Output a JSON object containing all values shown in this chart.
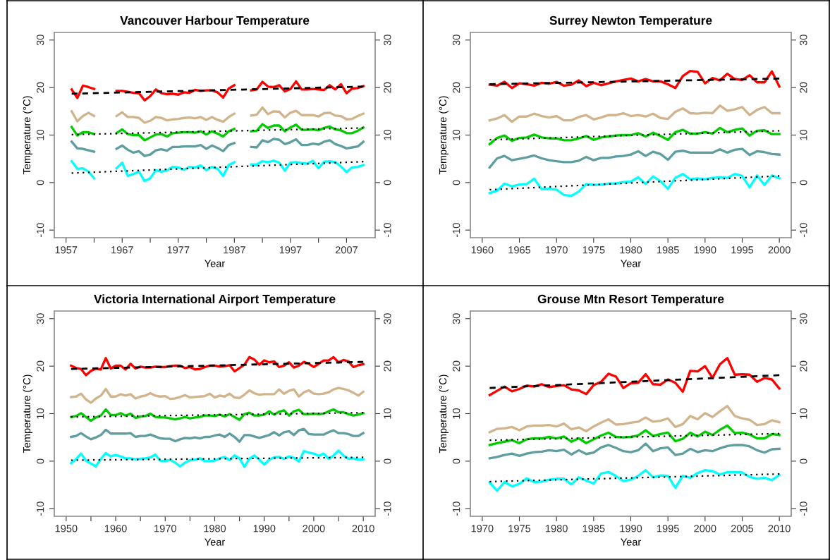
{
  "chart_data": [
    {
      "type": "line",
      "title": "Vancouver Harbour Temperature",
      "xlabel": "Year",
      "ylabel": "Temperature (°C)",
      "x": [
        1958,
        1959,
        1960,
        1961,
        1962,
        1963,
        1964,
        1965,
        1966,
        1967,
        1968,
        1969,
        1970,
        1971,
        1972,
        1973,
        1974,
        1975,
        1976,
        1977,
        1978,
        1979,
        1980,
        1981,
        1982,
        1983,
        1984,
        1985,
        1986,
        1987,
        1988,
        1989,
        1990,
        1991,
        1992,
        1993,
        1994,
        1995,
        1996,
        1997,
        1998,
        1999,
        2000,
        2001,
        2002,
        2003,
        2004,
        2005,
        2006,
        2007,
        2008,
        2009,
        2010
      ],
      "xlim": [
        1954.9,
        2012.1
      ],
      "xticks": [
        1957,
        {
          "value": 1962,
          "label": null
        },
        1967,
        {
          "value": 1972,
          "label": null
        },
        1977,
        {
          "value": 1982,
          "label": null
        },
        1987,
        {
          "value": 1992,
          "label": null
        },
        1997,
        {
          "value": 2002,
          "label": null
        },
        2007
      ],
      "ylim": [
        -11.6,
        31.6
      ],
      "yticks": [
        -10,
        0,
        10,
        20,
        30
      ],
      "y2lim": [
        -11.6,
        31.6
      ],
      "y2ticks": [
        -10,
        0,
        10,
        20,
        30
      ],
      "grid": false,
      "series": [
        {
          "color": "#ff0000",
          "values": [
            19.6,
            17.8,
            20.4,
            20.1,
            19.7,
            null,
            null,
            null,
            19.3,
            19.3,
            19.1,
            18.9,
            18.8,
            17.3,
            18.2,
            19.6,
            18.8,
            18.6,
            18.7,
            18.5,
            19.0,
            18.9,
            19.5,
            19.3,
            19.4,
            19.4,
            19.0,
            17.9,
            19.8,
            20.5,
            null,
            null,
            19.4,
            19.6,
            21.2,
            20.2,
            20.1,
            20.5,
            19.2,
            19.7,
            21.3,
            19.6,
            19.6,
            19.7,
            19.6,
            19.5,
            20.5,
            19.6,
            20.7,
            18.8,
            19.8,
            19.9,
            20.3
          ]
        },
        {
          "color": "#d2b48c",
          "values": [
            15.0,
            12.9,
            14.0,
            14.7,
            14.0,
            null,
            null,
            null,
            14.0,
            14.8,
            13.8,
            13.8,
            13.6,
            12.6,
            13.0,
            13.8,
            13.6,
            13.1,
            13.3,
            13.4,
            13.6,
            13.7,
            13.5,
            13.8,
            13.2,
            13.8,
            13.2,
            12.8,
            13.8,
            14.5,
            null,
            null,
            14.1,
            14.3,
            15.8,
            14.4,
            15.0,
            14.9,
            13.7,
            14.7,
            15.1,
            14.2,
            14.2,
            14.2,
            13.9,
            14.6,
            14.7,
            14.1,
            14.0,
            13.3,
            13.4,
            14.0,
            14.5
          ]
        },
        {
          "color": "#00cc00",
          "values": [
            11.7,
            9.9,
            10.6,
            10.6,
            10.2,
            null,
            null,
            null,
            10.4,
            11.2,
            10.2,
            10.0,
            10.0,
            8.9,
            9.5,
            10.1,
            10.2,
            9.7,
            10.4,
            10.5,
            10.6,
            10.6,
            10.5,
            10.8,
            10.1,
            10.8,
            10.3,
            9.7,
            10.8,
            11.3,
            null,
            null,
            10.8,
            10.9,
            12.3,
            11.5,
            12.0,
            12.0,
            10.8,
            11.6,
            12.2,
            11.1,
            11.1,
            11.2,
            11.0,
            11.5,
            11.8,
            11.2,
            11.0,
            10.4,
            10.4,
            10.9,
            11.6
          ]
        },
        {
          "color": "#5f9ea0",
          "values": [
            8.6,
            7.2,
            7.1,
            6.8,
            6.5,
            null,
            null,
            null,
            7.1,
            7.8,
            6.9,
            6.3,
            6.6,
            5.6,
            5.9,
            6.8,
            7.0,
            6.7,
            7.5,
            7.5,
            7.6,
            7.6,
            7.6,
            7.9,
            7.1,
            7.8,
            7.3,
            6.6,
            7.9,
            8.3,
            null,
            null,
            7.5,
            7.4,
            8.9,
            8.5,
            9.2,
            9.0,
            8.1,
            8.5,
            9.1,
            7.9,
            7.9,
            8.2,
            8.0,
            8.6,
            8.9,
            8.1,
            7.7,
            7.2,
            7.4,
            7.6,
            8.6
          ]
        },
        {
          "color": "#00ffff",
          "values": [
            4.5,
            2.9,
            3.0,
            2.3,
            0.9,
            null,
            null,
            null,
            3.0,
            4.2,
            1.4,
            1.8,
            2.3,
            0.3,
            0.9,
            2.6,
            2.3,
            2.6,
            3.3,
            3.2,
            2.7,
            3.3,
            3.2,
            3.6,
            2.6,
            3.3,
            2.9,
            1.4,
            3.7,
            4.3,
            null,
            null,
            3.8,
            3.8,
            4.5,
            4.3,
            4.6,
            4.2,
            2.5,
            4.2,
            4.3,
            4.1,
            4.0,
            4.6,
            3.0,
            4.4,
            4.5,
            4.3,
            3.4,
            2.2,
            3.2,
            3.3,
            3.7
          ]
        },
        {
          "type": "line",
          "color": "#000000",
          "line_style": "dashed",
          "x": [
            1958,
            2010
          ],
          "values": [
            18.7,
            20.2
          ]
        },
        {
          "type": "line",
          "color": "#000000",
          "line_style": "dotted",
          "x": [
            1958,
            2010
          ],
          "values": [
            10.1,
            11.5
          ]
        },
        {
          "type": "line",
          "color": "#000000",
          "line_style": "dotted",
          "x": [
            1958,
            2010
          ],
          "values": [
            2.0,
            4.4
          ]
        }
      ]
    },
    {
      "type": "line",
      "title": "Surrey Newton Temperature",
      "xlabel": "Year",
      "ylabel": "Temperature (°C)",
      "x": [
        1961,
        1962,
        1963,
        1964,
        1965,
        1966,
        1967,
        1968,
        1969,
        1970,
        1971,
        1972,
        1973,
        1974,
        1975,
        1976,
        1977,
        1978,
        1979,
        1980,
        1981,
        1982,
        1983,
        1984,
        1985,
        1986,
        1987,
        1988,
        1989,
        1990,
        1991,
        1992,
        1993,
        1994,
        1995,
        1996,
        1997,
        1998,
        1999,
        2000
      ],
      "xlim": [
        1958.4,
        2001.6
      ],
      "xticks": [
        1960,
        1965,
        1970,
        1975,
        1980,
        1985,
        1990,
        1995,
        2000
      ],
      "ylim": [
        -11.6,
        31.6
      ],
      "yticks": [
        -10,
        0,
        10,
        20,
        30
      ],
      "y2lim": [
        -11.6,
        31.6
      ],
      "y2ticks": [
        -10,
        0,
        10,
        20,
        30
      ],
      "grid": false,
      "series": [
        {
          "color": "#ff0000",
          "values": [
            20.6,
            20.4,
            21.2,
            19.9,
            20.9,
            20.7,
            20.4,
            21.0,
            20.8,
            21.2,
            20.4,
            20.6,
            21.5,
            20.3,
            21.0,
            20.5,
            20.9,
            21.3,
            21.6,
            21.9,
            21.3,
            21.8,
            21.3,
            21.3,
            20.7,
            19.9,
            22.4,
            23.5,
            23.3,
            20.9,
            22.0,
            21.5,
            22.9,
            21.8,
            21.6,
            22.6,
            21.1,
            21.1,
            23.4,
            20.2
          ]
        },
        {
          "color": "#d2b48c",
          "values": [
            13.1,
            13.5,
            14.2,
            12.8,
            13.9,
            13.9,
            14.5,
            14.0,
            13.7,
            14.0,
            13.1,
            13.1,
            13.8,
            14.2,
            13.3,
            13.7,
            14.2,
            14.2,
            14.6,
            14.0,
            14.2,
            13.9,
            14.5,
            13.6,
            13.4,
            14.9,
            15.6,
            14.6,
            14.5,
            14.7,
            14.6,
            16.2,
            15.1,
            15.4,
            15.9,
            14.2,
            15.3,
            15.9,
            14.6,
            14.6
          ]
        },
        {
          "color": "#00cc00",
          "values": [
            8.1,
            9.4,
            9.9,
            8.8,
            9.4,
            9.5,
            10.1,
            9.5,
            9.3,
            9.3,
            8.9,
            8.9,
            9.3,
            9.8,
            9.0,
            9.5,
            9.7,
            9.9,
            10.0,
            10.0,
            10.4,
            9.7,
            10.5,
            9.8,
            9.0,
            10.6,
            11.1,
            10.3,
            10.3,
            10.6,
            10.3,
            11.5,
            10.6,
            11.1,
            11.4,
            9.9,
            10.9,
            11.0,
            10.2,
            10.2
          ]
        },
        {
          "color": "#5f9ea0",
          "values": [
            3.2,
            5.1,
            5.6,
            4.7,
            5.0,
            5.3,
            5.7,
            5.1,
            4.7,
            4.5,
            4.3,
            4.3,
            4.6,
            5.4,
            4.7,
            5.2,
            5.2,
            5.5,
            5.6,
            5.9,
            6.6,
            5.6,
            6.5,
            6.0,
            4.8,
            6.5,
            6.7,
            6.3,
            6.3,
            6.3,
            6.3,
            7.0,
            6.3,
            6.9,
            7.1,
            5.8,
            6.6,
            6.4,
            6.0,
            5.9
          ]
        },
        {
          "color": "#00ffff",
          "values": [
            -2.2,
            -1.7,
            -0.2,
            -0.8,
            -0.4,
            -0.3,
            0.8,
            -1.4,
            -1.3,
            -1.5,
            -2.6,
            -2.8,
            -1.9,
            -0.3,
            -0.5,
            -0.4,
            -0.2,
            -0.2,
            0.1,
            0.2,
            1.1,
            -0.3,
            1.3,
            0.3,
            -1.3,
            1.0,
            1.8,
            0.7,
            0.9,
            0.7,
            1.0,
            1.1,
            1.0,
            1.8,
            1.4,
            -1.0,
            1.5,
            -0.5,
            1.5,
            0.9
          ]
        },
        {
          "type": "line",
          "color": "#000000",
          "line_style": "dashed",
          "x": [
            1961,
            2000
          ],
          "values": [
            20.7,
            21.9
          ]
        },
        {
          "type": "line",
          "color": "#000000",
          "line_style": "dotted",
          "x": [
            1961,
            2000
          ],
          "values": [
            9.0,
            10.9
          ]
        },
        {
          "type": "line",
          "color": "#000000",
          "line_style": "dotted",
          "x": [
            1961,
            2000
          ],
          "values": [
            -1.5,
            1.4
          ]
        }
      ]
    },
    {
      "type": "line",
      "title": "Victoria International Airport Temperature",
      "xlabel": "Year",
      "ylabel": "Temperature (°C)",
      "x": [
        1951,
        1952,
        1953,
        1954,
        1955,
        1956,
        1957,
        1958,
        1959,
        1960,
        1961,
        1962,
        1963,
        1964,
        1965,
        1966,
        1967,
        1968,
        1969,
        1970,
        1971,
        1972,
        1973,
        1974,
        1975,
        1976,
        1977,
        1978,
        1979,
        1980,
        1981,
        1982,
        1983,
        1984,
        1985,
        1986,
        1987,
        1988,
        1989,
        1990,
        1991,
        1992,
        1993,
        1994,
        1995,
        1996,
        1997,
        1998,
        1999,
        2000,
        2001,
        2002,
        2003,
        2004,
        2005,
        2006,
        2007,
        2008,
        2009,
        2010
      ],
      "xlim": [
        1947.6,
        2012.4
      ],
      "xticks": [
        1950,
        {
          "value": 1955,
          "label": null
        },
        1960,
        {
          "value": 1965,
          "label": null
        },
        1970,
        {
          "value": 1975,
          "label": null
        },
        1980,
        {
          "value": 1985,
          "label": null
        },
        1990,
        {
          "value": 1995,
          "label": null
        },
        2000,
        {
          "value": 2005,
          "label": null
        },
        2010
      ],
      "ylim": [
        -11.6,
        31.6
      ],
      "yticks": [
        -10,
        0,
        10,
        20,
        30
      ],
      "y2lim": [
        -11.6,
        31.6
      ],
      "y2ticks": [
        -10,
        0,
        10,
        20,
        30
      ],
      "grid": false,
      "series": [
        {
          "color": "#ff0000",
          "values": [
            20.1,
            19.6,
            19.4,
            18.1,
            19.0,
            19.5,
            19.3,
            21.7,
            19.5,
            20.1,
            20.1,
            19.3,
            20.5,
            19.5,
            19.9,
            19.7,
            19.7,
            19.9,
            19.8,
            19.8,
            20.0,
            20.1,
            20.1,
            19.6,
            19.8,
            19.3,
            19.4,
            19.8,
            20.1,
            20.1,
            19.9,
            20.0,
            20.2,
            18.9,
            19.6,
            20.3,
            21.9,
            21.4,
            20.3,
            21.2,
            20.8,
            21.0,
            19.8,
            20.1,
            20.8,
            19.7,
            20.1,
            20.9,
            20.5,
            19.8,
            20.5,
            21.2,
            21.2,
            21.9,
            20.8,
            21.3,
            21.0,
            19.8,
            20.2,
            20.4
          ]
        },
        {
          "color": "#d2b48c",
          "values": [
            13.5,
            13.6,
            14.2,
            13.0,
            12.3,
            13.2,
            13.8,
            15.2,
            13.6,
            13.6,
            14.1,
            13.8,
            14.1,
            13.2,
            13.6,
            13.8,
            14.3,
            13.8,
            13.6,
            13.7,
            13.1,
            13.2,
            13.5,
            13.9,
            13.4,
            13.5,
            13.6,
            13.7,
            14.2,
            13.4,
            13.8,
            13.6,
            14.2,
            13.4,
            13.3,
            14.0,
            14.9,
            14.3,
            14.0,
            14.1,
            14.1,
            14.1,
            15.1,
            14.2,
            14.8,
            15.1,
            13.6,
            14.5,
            14.9,
            14.2,
            14.1,
            14.2,
            14.5,
            15.1,
            15.4,
            15.2,
            14.9,
            14.4,
            13.8,
            14.6
          ]
        },
        {
          "color": "#00cc00",
          "values": [
            9.3,
            9.5,
            10.1,
            9.3,
            8.5,
            9.2,
            9.6,
            10.9,
            9.7,
            9.7,
            10.1,
            9.6,
            10.0,
            9.1,
            9.4,
            9.5,
            10.0,
            9.3,
            9.2,
            9.2,
            9.0,
            8.8,
            9.0,
            9.3,
            9.0,
            9.2,
            9.3,
            9.6,
            9.6,
            9.5,
            9.8,
            9.4,
            9.9,
            9.3,
            8.7,
            9.9,
            10.2,
            9.6,
            9.6,
            9.8,
            10.5,
            9.8,
            10.4,
            10.7,
            9.6,
            10.5,
            10.8,
            9.9,
            9.9,
            10.0,
            9.9,
            10.0,
            10.5,
            10.9,
            10.3,
            10.3,
            9.9,
            9.6,
            9.8,
            10.1
          ]
        },
        {
          "color": "#5f9ea0",
          "values": [
            5.1,
            5.3,
            5.9,
            5.2,
            4.6,
            5.0,
            5.5,
            6.6,
            5.8,
            5.8,
            5.8,
            5.8,
            5.9,
            5.1,
            5.3,
            5.3,
            5.6,
            5.2,
            4.8,
            4.7,
            4.7,
            4.2,
            4.6,
            4.9,
            4.8,
            5.0,
            4.8,
            5.1,
            5.1,
            5.4,
            5.6,
            5.1,
            5.8,
            5.1,
            4.1,
            5.5,
            5.5,
            5.2,
            4.9,
            5.2,
            5.5,
            6.1,
            5.4,
            6.1,
            6.3,
            5.5,
            6.5,
            6.8,
            5.7,
            5.6,
            5.6,
            5.6,
            6.1,
            6.5,
            5.9,
            5.9,
            5.7,
            5.3,
            5.3,
            5.9
          ]
        },
        {
          "color": "#00ffff",
          "values": [
            -0.4,
            0.4,
            1.6,
            0.1,
            -0.5,
            -1.1,
            0.5,
            1.7,
            1.0,
            1.3,
            1.0,
            0.6,
            0.6,
            0.4,
            0.5,
            0.6,
            0.8,
            1.4,
            0.1,
            0.0,
            0.3,
            -0.3,
            -1.1,
            -0.3,
            0.2,
            0.3,
            0.6,
            0.0,
            0.0,
            0.1,
            0.6,
            0.9,
            0.2,
            1.2,
            0.6,
            -1.2,
            0.5,
            1.2,
            0.3,
            -0.7,
            0.3,
            0.8,
            0.9,
            0.5,
            1.0,
            0.7,
            -0.1,
            2.1,
            1.8,
            1.6,
            1.1,
            1.6,
            0.5,
            1.2,
            2.2,
            1.2,
            0.5,
            0.6,
            0.3,
            0.4
          ]
        },
        {
          "type": "line",
          "color": "#000000",
          "line_style": "dashed",
          "x": [
            1951,
            2010
          ],
          "values": [
            19.4,
            20.9
          ]
        },
        {
          "type": "line",
          "color": "#000000",
          "line_style": "dotted",
          "x": [
            1951,
            2010
          ],
          "values": [
            9.3,
            10.2
          ]
        },
        {
          "type": "line",
          "color": "#000000",
          "line_style": "dotted",
          "x": [
            1951,
            2010
          ],
          "values": [
            0.2,
            0.8
          ]
        }
      ]
    },
    {
      "type": "line",
      "title": "Grouse Mtn Resort Temperature",
      "xlabel": "Year",
      "ylabel": "Temperature (°C)",
      "x": [
        1971,
        1972,
        1973,
        1974,
        1975,
        1976,
        1977,
        1978,
        1979,
        1980,
        1981,
        1982,
        1983,
        1984,
        1985,
        1986,
        1987,
        1988,
        1989,
        1990,
        1991,
        1992,
        1993,
        1994,
        1995,
        1996,
        1997,
        1998,
        1999,
        2000,
        2001,
        2002,
        2003,
        2004,
        2005,
        2006,
        2007,
        2008,
        2009,
        2010
      ],
      "xlim": [
        1968.4,
        2011.6
      ],
      "xticks": [
        1970,
        1975,
        1980,
        1985,
        1990,
        1995,
        2000,
        2005,
        2010
      ],
      "ylim": [
        -11.6,
        31.6
      ],
      "yticks": [
        -10,
        0,
        10,
        20,
        30
      ],
      "y2lim": [
        -11.6,
        31.6
      ],
      "y2ticks": [
        -10,
        0,
        10,
        20,
        30
      ],
      "grid": false,
      "series": [
        {
          "color": "#ff0000",
          "values": [
            13.9,
            14.8,
            15.7,
            14.7,
            15.2,
            15.9,
            15.7,
            16.2,
            15.6,
            15.8,
            16.0,
            15.1,
            14.9,
            14.1,
            16.0,
            16.7,
            18.4,
            17.8,
            15.4,
            16.4,
            16.5,
            18.3,
            16.2,
            16.1,
            17.2,
            16.5,
            14.6,
            19.0,
            18.9,
            20.0,
            17.5,
            20.4,
            21.7,
            18.2,
            18.3,
            18.2,
            16.7,
            17.5,
            17.2,
            15.3
          ]
        },
        {
          "color": "#d2b48c",
          "values": [
            6.1,
            6.8,
            6.9,
            7.2,
            6.5,
            7.3,
            7.5,
            7.5,
            7.6,
            7.3,
            7.9,
            6.7,
            7.1,
            6.3,
            7.3,
            8.1,
            8.8,
            7.7,
            7.8,
            8.1,
            8.3,
            9.2,
            8.3,
            8.5,
            9.0,
            7.2,
            7.8,
            9.5,
            8.8,
            10.1,
            9.3,
            10.5,
            11.6,
            9.5,
            9.0,
            8.7,
            7.6,
            7.8,
            8.6,
            8.2
          ]
        },
        {
          "color": "#00cc00",
          "values": [
            3.4,
            3.8,
            4.1,
            4.4,
            3.8,
            4.6,
            4.8,
            4.8,
            5.1,
            4.8,
            5.2,
            4.1,
            4.8,
            3.8,
            4.6,
            5.4,
            6.0,
            5.1,
            5.0,
            5.1,
            5.4,
            6.5,
            5.3,
            5.7,
            6.0,
            4.2,
            4.7,
            6.0,
            5.2,
            6.2,
            5.5,
            6.6,
            7.5,
            5.9,
            6.0,
            5.6,
            4.8,
            4.8,
            5.7,
            5.5
          ]
        },
        {
          "color": "#5f9ea0",
          "values": [
            0.6,
            0.9,
            1.3,
            1.6,
            1.1,
            1.6,
            1.9,
            2.0,
            2.3,
            2.1,
            2.4,
            1.4,
            2.3,
            1.5,
            1.8,
            2.9,
            3.4,
            2.8,
            2.1,
            1.9,
            2.3,
            3.7,
            2.1,
            2.7,
            2.9,
            1.3,
            1.6,
            2.6,
            1.9,
            2.3,
            2.1,
            2.7,
            3.2,
            3.4,
            3.4,
            3.1,
            2.3,
            1.8,
            2.5,
            2.6
          ]
        },
        {
          "color": "#00ffff",
          "values": [
            -4.5,
            -6.2,
            -4.4,
            -5.3,
            -4.8,
            -3.6,
            -4.4,
            -4.3,
            -3.9,
            -3.7,
            -3.7,
            -4.9,
            -3.4,
            -4.1,
            -4.7,
            -2.6,
            -2.3,
            -3.1,
            -4.2,
            -3.9,
            -3.1,
            -1.9,
            -3.4,
            -3.0,
            -3.1,
            -5.6,
            -3.1,
            -3.5,
            -2.5,
            -1.9,
            -2.1,
            -2.8,
            -2.3,
            -2.3,
            -2.4,
            -3.3,
            -3.7,
            -3.5,
            -4.0,
            -2.9
          ]
        },
        {
          "type": "line",
          "color": "#000000",
          "line_style": "dashed",
          "x": [
            1971,
            2010
          ],
          "values": [
            15.4,
            18.1
          ]
        },
        {
          "type": "line",
          "color": "#000000",
          "line_style": "dotted",
          "x": [
            1971,
            2010
          ],
          "values": [
            4.4,
            5.8
          ]
        },
        {
          "type": "line",
          "color": "#000000",
          "line_style": "dotted",
          "x": [
            1971,
            2010
          ],
          "values": [
            -4.3,
            -2.7
          ]
        }
      ]
    }
  ]
}
